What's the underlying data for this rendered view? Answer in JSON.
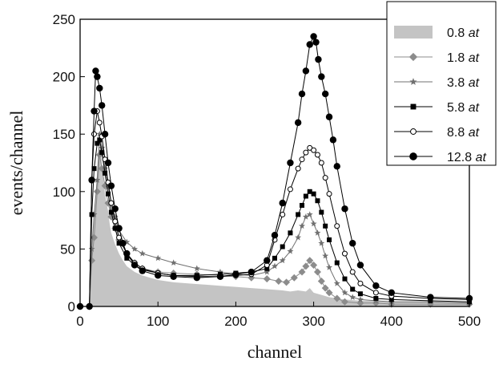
{
  "chart_data": {
    "type": "line",
    "title": "",
    "xlabel": "channel",
    "ylabel": "events/channel",
    "xlim": [
      0,
      500
    ],
    "ylim": [
      0,
      250
    ],
    "xticks": [
      0,
      100,
      200,
      300,
      400,
      500
    ],
    "yticks": [
      0,
      50,
      100,
      150,
      200,
      250
    ],
    "grid": false,
    "legend_position": "top-right",
    "series": [
      {
        "name": "0.8",
        "unit": "at",
        "style": "filled-area",
        "color": "#c4c4c4",
        "x": [
          0,
          12,
          15,
          18,
          20,
          22,
          24,
          26,
          28,
          30,
          32,
          34,
          36,
          38,
          40,
          45,
          50,
          55,
          60,
          70,
          80,
          90,
          100,
          120,
          140,
          160,
          180,
          200,
          220,
          240,
          260,
          270,
          280,
          290,
          295,
          300,
          310,
          320,
          330,
          340,
          360,
          380,
          400,
          450,
          500
        ],
        "y": [
          0,
          0,
          48,
          78,
          96,
          118,
          134,
          140,
          125,
          110,
          98,
          90,
          83,
          72,
          64,
          54,
          46,
          40,
          35,
          30,
          27,
          25,
          23,
          21,
          20,
          19,
          18,
          17,
          16,
          15,
          14,
          13,
          14,
          13,
          16,
          12,
          10,
          8,
          7,
          6,
          5,
          5,
          4,
          4,
          3
        ]
      },
      {
        "name": "1.8",
        "unit": "at",
        "style": "diamond",
        "color": "#8c8c8c",
        "x": [
          0,
          12,
          15,
          18,
          22,
          25,
          28,
          32,
          36,
          40,
          45,
          50,
          60,
          70,
          80,
          100,
          120,
          150,
          180,
          200,
          220,
          240,
          255,
          265,
          275,
          285,
          290,
          295,
          300,
          305,
          310,
          315,
          320,
          330,
          340,
          360,
          380,
          400,
          450,
          500
        ],
        "y": [
          0,
          0,
          40,
          60,
          100,
          132,
          120,
          105,
          90,
          78,
          68,
          58,
          46,
          38,
          33,
          30,
          29,
          28,
          27,
          26,
          25,
          24,
          22,
          21,
          25,
          30,
          35,
          40,
          36,
          30,
          22,
          16,
          12,
          7,
          4,
          3,
          3,
          2,
          2,
          2
        ]
      },
      {
        "name": "3.8",
        "unit": "at",
        "style": "star",
        "color": "#707070",
        "x": [
          0,
          12,
          15,
          18,
          22,
          25,
          28,
          32,
          36,
          40,
          45,
          50,
          60,
          70,
          80,
          100,
          120,
          150,
          180,
          200,
          220,
          240,
          250,
          260,
          270,
          280,
          285,
          290,
          295,
          300,
          305,
          310,
          315,
          320,
          330,
          340,
          350,
          360,
          380,
          400,
          450,
          500
        ],
        "y": [
          0,
          0,
          50,
          80,
          110,
          150,
          138,
          120,
          104,
          90,
          78,
          66,
          56,
          50,
          46,
          42,
          38,
          33,
          30,
          28,
          27,
          30,
          35,
          40,
          48,
          60,
          70,
          78,
          80,
          72,
          64,
          55,
          44,
          34,
          20,
          12,
          8,
          6,
          5,
          4,
          4,
          3
        ]
      },
      {
        "name": "5.8",
        "unit": "at",
        "style": "square",
        "color": "#000000",
        "x": [
          0,
          12,
          15,
          18,
          22,
          25,
          28,
          32,
          36,
          40,
          45,
          50,
          60,
          70,
          80,
          100,
          120,
          150,
          180,
          200,
          220,
          240,
          250,
          260,
          270,
          280,
          285,
          290,
          295,
          300,
          305,
          310,
          315,
          320,
          330,
          340,
          350,
          360,
          380,
          400,
          450,
          500
        ],
        "y": [
          0,
          0,
          80,
          120,
          142,
          145,
          134,
          116,
          98,
          82,
          68,
          55,
          42,
          36,
          32,
          29,
          27,
          27,
          28,
          29,
          30,
          33,
          42,
          52,
          64,
          80,
          88,
          96,
          100,
          98,
          92,
          82,
          70,
          58,
          38,
          24,
          15,
          11,
          7,
          6,
          5,
          4
        ]
      },
      {
        "name": "8.8",
        "unit": "at",
        "style": "open-circle",
        "color": "#000000",
        "x": [
          0,
          12,
          15,
          18,
          22,
          25,
          28,
          32,
          36,
          40,
          45,
          50,
          60,
          70,
          80,
          100,
          120,
          150,
          180,
          200,
          220,
          240,
          250,
          260,
          270,
          280,
          285,
          290,
          295,
          300,
          305,
          310,
          315,
          320,
          330,
          340,
          350,
          360,
          380,
          400,
          450,
          500
        ],
        "y": [
          0,
          0,
          110,
          150,
          170,
          160,
          148,
          128,
          108,
          90,
          74,
          60,
          46,
          38,
          33,
          29,
          27,
          26,
          26,
          27,
          28,
          36,
          58,
          80,
          102,
          120,
          128,
          134,
          138,
          136,
          132,
          125,
          112,
          98,
          70,
          46,
          30,
          20,
          12,
          9,
          7,
          6
        ]
      },
      {
        "name": "12.8",
        "unit": "at",
        "style": "filled-circle",
        "color": "#000000",
        "x": [
          0,
          12,
          15,
          18,
          20,
          22,
          25,
          28,
          32,
          36,
          40,
          45,
          50,
          55,
          60,
          70,
          80,
          100,
          120,
          150,
          180,
          200,
          220,
          240,
          250,
          260,
          270,
          280,
          285,
          290,
          295,
          300,
          303,
          306,
          310,
          315,
          320,
          325,
          330,
          340,
          350,
          360,
          380,
          400,
          450,
          500
        ],
        "y": [
          0,
          0,
          110,
          170,
          205,
          200,
          190,
          175,
          150,
          125,
          105,
          85,
          68,
          55,
          46,
          36,
          31,
          27,
          26,
          25,
          26,
          28,
          30,
          40,
          62,
          90,
          125,
          160,
          185,
          205,
          228,
          235,
          230,
          215,
          200,
          185,
          165,
          145,
          122,
          85,
          55,
          36,
          18,
          12,
          8,
          7
        ]
      }
    ]
  }
}
